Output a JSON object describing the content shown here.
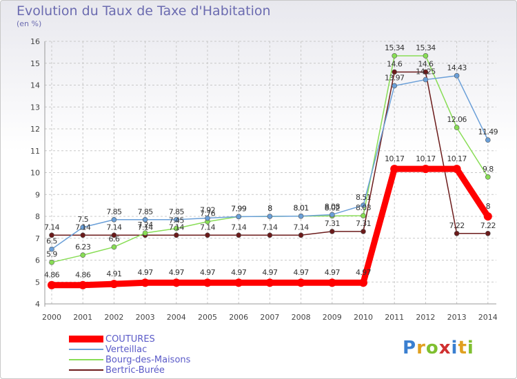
{
  "header": {
    "title": "Evolution du Taux de Taxe d'Habitation",
    "subtitle": "(en %)"
  },
  "logo_text": "Proxiti",
  "chart_data": {
    "type": "line",
    "title": "Evolution du Taux de Taxe d'Habitation",
    "subtitle": "(en %)",
    "x": [
      "2000",
      "2001",
      "2002",
      "2003",
      "2004",
      "2005",
      "2006",
      "2007",
      "2008",
      "2009",
      "2010",
      "2011",
      "2012",
      "2013",
      "2014"
    ],
    "ylim": [
      4,
      16
    ],
    "yticks": [
      4,
      5,
      6,
      7,
      8,
      9,
      10,
      11,
      12,
      13,
      14,
      15,
      16
    ],
    "grid": true,
    "legend_position": "bottom-left",
    "series": [
      {
        "name": "COUTURES",
        "color": "#ff0000",
        "values": [
          4.86,
          4.86,
          4.91,
          4.97,
          4.97,
          4.97,
          4.97,
          4.97,
          4.97,
          4.97,
          4.97,
          10.17,
          10.17,
          10.17,
          8
        ],
        "labels": [
          "4.86",
          "4.86",
          "4.91",
          "4.97",
          "4.97",
          "4.97",
          "4.97",
          "4.97",
          "4.97",
          "4.97",
          "4.97",
          "10.17",
          "10.17",
          "10.17",
          "8"
        ]
      },
      {
        "name": "Verteillac",
        "color": "#6a9fd8",
        "values": [
          6.5,
          7.5,
          7.85,
          7.85,
          7.85,
          7.92,
          7.99,
          8,
          8.01,
          8.08,
          8.51,
          13.97,
          14.25,
          14.43,
          11.49
        ],
        "labels": [
          "6.5",
          "7.5",
          "7.85",
          "7.85",
          "7.85",
          "7.92",
          "7.99",
          "8",
          "8.01",
          "8.08",
          "8.51",
          "13.97",
          "14.25",
          "14.43",
          "11.49"
        ]
      },
      {
        "name": "Bourg-des-Maisons",
        "color": "#88dd55",
        "values": [
          5.9,
          6.23,
          6.6,
          7.24,
          7.45,
          7.76,
          7.99,
          8,
          8.01,
          8.02,
          8.03,
          15.34,
          15.34,
          12.06,
          9.8
        ],
        "labels": [
          "5.9",
          "6.23",
          "6.6",
          "7.24",
          "7.45",
          "7.76",
          "7.99",
          "8",
          "8.01",
          "8.02",
          "8.03",
          "15.34",
          "15.34",
          "12.06",
          "9.8"
        ]
      },
      {
        "name": "Bertric-Burée",
        "color": "#6b1a1a",
        "values": [
          7.14,
          7.14,
          7.14,
          7.14,
          7.14,
          7.14,
          7.14,
          7.14,
          7.14,
          7.31,
          7.31,
          14.6,
          14.6,
          7.22,
          7.22
        ],
        "labels": [
          "7.14",
          "7.14",
          "7.14",
          "7.14",
          "7.14",
          "7.14",
          "7.14",
          "7.14",
          "7.14",
          "7.31",
          "7.31",
          "14.6",
          "14.6",
          "7.22",
          "7.22"
        ]
      }
    ]
  }
}
